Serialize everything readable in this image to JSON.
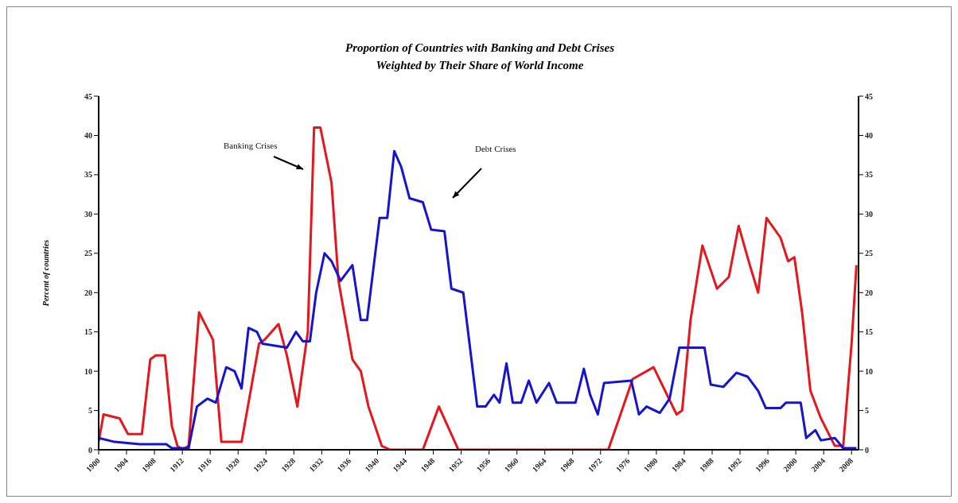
{
  "chart_data": {
    "type": "line",
    "title": "Proportion of Countries with Banking and Debt Crises",
    "subtitle": "Weighted by Their Share of World Income",
    "ylabel": "Percent of countries",
    "xlim": [
      1900,
      2009
    ],
    "xticks": [
      1900,
      1904,
      1908,
      1912,
      1916,
      1920,
      1924,
      1928,
      1932,
      1936,
      1940,
      1944,
      1948,
      1952,
      1956,
      1960,
      1964,
      1968,
      1972,
      1976,
      1980,
      1984,
      1988,
      1992,
      1996,
      2000,
      2004,
      2008
    ],
    "ylim": [
      0,
      45
    ],
    "yticks": [
      0,
      5,
      10,
      15,
      20,
      25,
      30,
      35,
      40,
      45
    ],
    "y2lim": [
      0,
      45
    ],
    "y2ticks": [
      0,
      5,
      10,
      15,
      20,
      25,
      30,
      35,
      40,
      45
    ],
    "grid": false,
    "legend": false,
    "marker": "none",
    "line_style": "solid",
    "series": [
      {
        "color": "#e8161b",
        "x": [
          1900,
          1900.7,
          1903,
          1904.2,
          1906.2,
          1907.4,
          1908.2,
          1909.5,
          1910.5,
          1911.3,
          1912,
          1912.9,
          1913.3,
          1914.4,
          1916.4,
          1917.6,
          1920.5,
          1923,
          1923.8,
          1925.8,
          1927,
          1928.5,
          1930,
          1930.9,
          1931.8,
          1933.4,
          1934.4,
          1936.4,
          1937.6,
          1938.7,
          1940.6,
          1941.8,
          1946.5,
          1948.8,
          1951.6,
          1973.1,
          1976.6,
          1979.6,
          1982.9,
          1983.7,
          1984.9,
          1986.6,
          1988.7,
          1990.4,
          1991.8,
          1993.4,
          1994.6,
          1995.8,
          1997.8,
          1998.9,
          1999.8,
          2000.9,
          2002.1,
          2003.6,
          2005.6,
          2006.8,
          2008,
          2008.7
        ],
        "values": [
          1,
          4.5,
          4,
          2,
          2,
          11.5,
          12,
          12,
          3,
          0.5,
          0,
          0.5,
          5,
          17.5,
          14,
          1,
          1,
          13.5,
          14,
          16,
          12,
          5.5,
          15,
          41,
          41,
          34,
          21.5,
          11.5,
          10,
          5.5,
          0.5,
          0,
          0,
          5.5,
          0,
          0,
          9,
          10.5,
          4.5,
          5,
          16.5,
          26,
          20.5,
          22,
          28.5,
          23.5,
          20,
          29.5,
          27,
          24,
          24.5,
          17.5,
          7.5,
          4,
          0.5,
          0.5,
          13.5,
          23.5
        ]
      },
      {
        "color": "#1414d2",
        "x": [
          1900,
          1902.3,
          1905.9,
          1909.7,
          1910.5,
          1912.9,
          1914.1,
          1915.6,
          1916.8,
          1918.3,
          1919.5,
          1920.5,
          1921.5,
          1922.7,
          1923.5,
          1927,
          1928.3,
          1929.3,
          1930.3,
          1931.2,
          1932.4,
          1933.4,
          1934.7,
          1936.4,
          1937.6,
          1938.5,
          1940.3,
          1941.4,
          1942.4,
          1943.4,
          1944.6,
          1946.5,
          1947.7,
          1949.6,
          1950.6,
          1952.3,
          1954.3,
          1955.5,
          1956.7,
          1957.5,
          1958.5,
          1959.4,
          1960.6,
          1961.7,
          1962.8,
          1964.6,
          1965.7,
          1968.4,
          1969.6,
          1970.5,
          1971.6,
          1972.5,
          1976.4,
          1977.5,
          1978.6,
          1980.5,
          1981.9,
          1983.3,
          1986.9,
          1987.8,
          1989.6,
          1991.5,
          1993.1,
          1994.6,
          1995.7,
          1997.8,
          1998.6,
          2000.7,
          2001.5,
          2002.8,
          2003.6,
          2005.6,
          2006.8,
          2008.7
        ],
        "values": [
          1.5,
          1,
          0.7,
          0.7,
          0.2,
          0.2,
          5.5,
          6.5,
          6,
          10.5,
          10,
          7.8,
          15.5,
          15,
          13.5,
          13,
          15,
          13.8,
          13.8,
          20,
          25,
          24,
          21.5,
          23.5,
          16.5,
          16.5,
          29.5,
          29.5,
          38,
          36,
          32,
          31.5,
          28,
          27.8,
          20.5,
          20,
          5.5,
          5.5,
          7,
          6,
          11,
          6,
          6,
          8.8,
          6,
          8.5,
          6,
          6,
          10.3,
          7,
          4.5,
          8.5,
          8.8,
          4.5,
          5.5,
          4.7,
          6.5,
          13,
          13,
          8.3,
          8,
          9.8,
          9.3,
          7.5,
          5.3,
          5.3,
          6,
          6,
          1.5,
          2.5,
          1.2,
          1.5,
          0.2,
          0.2
        ]
      }
    ],
    "annotations": [
      "Banking Crises",
      "Debt Crises"
    ]
  }
}
